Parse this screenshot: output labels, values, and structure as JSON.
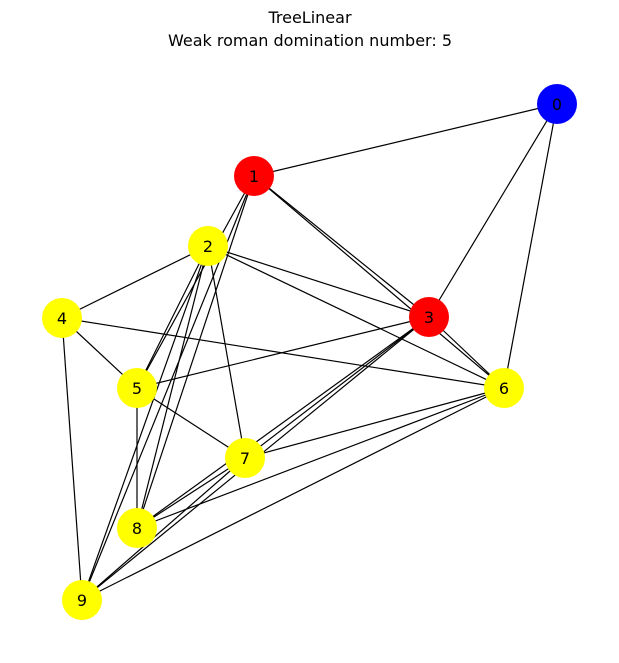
{
  "title": "TreeLinear",
  "subtitle": "Weak roman domination number: 5",
  "colors": {
    "blue": "#0000ff",
    "red": "#ff0000",
    "yellow": "#ffff00",
    "edge": "#000000"
  },
  "nodes": [
    {
      "id": "0",
      "label": "0",
      "color": "blue"
    },
    {
      "id": "1",
      "label": "1",
      "color": "red"
    },
    {
      "id": "2",
      "label": "2",
      "color": "yellow"
    },
    {
      "id": "3",
      "label": "3",
      "color": "red"
    },
    {
      "id": "4",
      "label": "4",
      "color": "yellow"
    },
    {
      "id": "5",
      "label": "5",
      "color": "yellow"
    },
    {
      "id": "6",
      "label": "6",
      "color": "yellow"
    },
    {
      "id": "7",
      "label": "7",
      "color": "yellow"
    },
    {
      "id": "8",
      "label": "8",
      "color": "yellow"
    },
    {
      "id": "9",
      "label": "9",
      "color": "yellow"
    }
  ],
  "edges": [
    [
      "0",
      "1"
    ],
    [
      "0",
      "3"
    ],
    [
      "0",
      "6"
    ],
    [
      "1",
      "3"
    ],
    [
      "1",
      "6"
    ],
    [
      "1",
      "5"
    ],
    [
      "1",
      "8"
    ],
    [
      "1",
      "9"
    ],
    [
      "2",
      "3"
    ],
    [
      "2",
      "4"
    ],
    [
      "2",
      "6"
    ],
    [
      "2",
      "5"
    ],
    [
      "2",
      "7"
    ],
    [
      "2",
      "8"
    ],
    [
      "2",
      "9"
    ],
    [
      "3",
      "5"
    ],
    [
      "3",
      "6"
    ],
    [
      "3",
      "7"
    ],
    [
      "3",
      "8"
    ],
    [
      "3",
      "9"
    ],
    [
      "4",
      "5"
    ],
    [
      "4",
      "6"
    ],
    [
      "4",
      "9"
    ],
    [
      "5",
      "7"
    ],
    [
      "5",
      "8"
    ],
    [
      "6",
      "7"
    ],
    [
      "6",
      "8"
    ],
    [
      "6",
      "9"
    ],
    [
      "7",
      "8"
    ],
    [
      "7",
      "9"
    ]
  ]
}
